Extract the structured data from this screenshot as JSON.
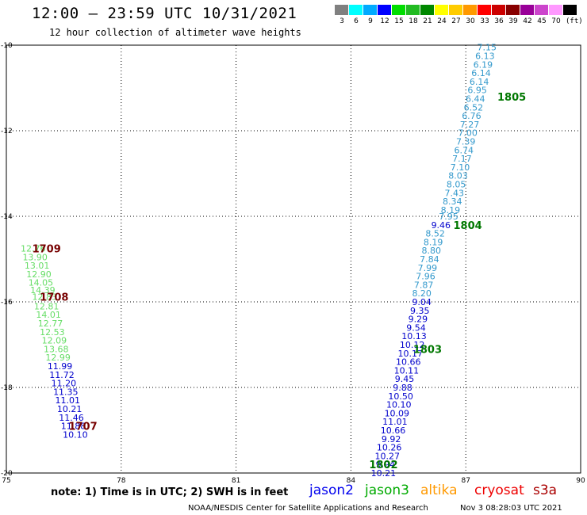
{
  "header": {
    "title": "12:00 — 23:59 UTC 10/31/2021",
    "subtitle": "12 hour collection of altimeter wave heights",
    "units": "(ft)"
  },
  "colorbar": [
    {
      "label": "3",
      "color": "#808080"
    },
    {
      "label": "6",
      "color": "#00ffff"
    },
    {
      "label": "9",
      "color": "#00aaff"
    },
    {
      "label": "12",
      "color": "#0000ff"
    },
    {
      "label": "15",
      "color": "#00dd00"
    },
    {
      "label": "18",
      "color": "#22bb22"
    },
    {
      "label": "21",
      "color": "#008800"
    },
    {
      "label": "24",
      "color": "#ffff00"
    },
    {
      "label": "27",
      "color": "#ffcc00"
    },
    {
      "label": "30",
      "color": "#ff9900"
    },
    {
      "label": "33",
      "color": "#ff0000"
    },
    {
      "label": "36",
      "color": "#cc0000"
    },
    {
      "label": "39",
      "color": "#880000"
    },
    {
      "label": "42",
      "color": "#990099"
    },
    {
      "label": "45",
      "color": "#cc44cc"
    },
    {
      "label": "70",
      "color": "#ff99ff"
    },
    {
      "label": "",
      "color": "#000000"
    }
  ],
  "footer": {
    "note": "note: 1) Time is in UTC; 2) SWH is in feet",
    "center": "NOAA/NESDIS Center for Satellite Applications and Research",
    "right": "Nov  3 08:28:03 UTC 2021"
  },
  "satellites": [
    {
      "name": "jason2",
      "color": "#0000ee"
    },
    {
      "name": "jason3",
      "color": "#00aa00"
    },
    {
      "name": "altika",
      "color": "#ff9900"
    },
    {
      "name": "cryosat",
      "color": "#ee0000"
    },
    {
      "name": "s3a",
      "color": "#aa0000"
    }
  ],
  "chart_data": {
    "type": "scatter",
    "xlim": [
      75,
      90
    ],
    "ylim": [
      -20,
      -10
    ],
    "xticks": [
      "75",
      "78",
      "81",
      "84",
      "87",
      "90"
    ],
    "yticks": [
      "-10",
      "-12",
      "-14",
      "-16",
      "-18",
      "-20"
    ],
    "grid": true,
    "series": [
      {
        "color": "#3399cc",
        "points": [
          {
            "x": 87.55,
            "y": -10.05,
            "label": "7.15"
          },
          {
            "x": 87.5,
            "y": -10.25,
            "label": "6.13"
          },
          {
            "x": 87.45,
            "y": -10.45,
            "label": "6.19"
          },
          {
            "x": 87.4,
            "y": -10.65,
            "label": "6.14"
          },
          {
            "x": 87.35,
            "y": -10.85,
            "label": "6.14"
          },
          {
            "x": 87.3,
            "y": -11.05,
            "label": "6.95"
          },
          {
            "x": 87.25,
            "y": -11.25,
            "label": "6.44"
          },
          {
            "x": 87.2,
            "y": -11.45,
            "label": "6.52"
          },
          {
            "x": 87.15,
            "y": -11.65,
            "label": "6.76"
          },
          {
            "x": 87.1,
            "y": -11.85,
            "label": "7.27"
          },
          {
            "x": 87.05,
            "y": -12.05,
            "label": "7.00"
          },
          {
            "x": 87,
            "y": -12.25,
            "label": "7.39"
          },
          {
            "x": 86.95,
            "y": -12.45,
            "label": "6.74"
          },
          {
            "x": 86.9,
            "y": -12.65,
            "label": "7.17"
          },
          {
            "x": 86.85,
            "y": -12.85,
            "label": "7.10"
          },
          {
            "x": 86.8,
            "y": -13.05,
            "label": "8.03"
          },
          {
            "x": 86.75,
            "y": -13.25,
            "label": "8.05"
          },
          {
            "x": 86.7,
            "y": -13.45,
            "label": "7.43"
          },
          {
            "x": 86.65,
            "y": -13.65,
            "label": "8.34"
          },
          {
            "x": 86.6,
            "y": -13.85,
            "label": "8.19"
          },
          {
            "x": 86.55,
            "y": -14.0,
            "label": "7.95"
          },
          {
            "x": 86.2,
            "y": -14.4,
            "label": "8.52"
          },
          {
            "x": 86.15,
            "y": -14.6,
            "label": "8.19"
          },
          {
            "x": 86.1,
            "y": -14.8,
            "label": "8.80"
          },
          {
            "x": 86.05,
            "y": -15.0,
            "label": "7.84"
          },
          {
            "x": 86,
            "y": -15.2,
            "label": "7.99"
          },
          {
            "x": 85.95,
            "y": -15.4,
            "label": "7.96"
          },
          {
            "x": 85.9,
            "y": -15.6,
            "label": "7.87"
          },
          {
            "x": 85.85,
            "y": -15.8,
            "label": "8.20"
          }
        ]
      },
      {
        "color": "#0000cc",
        "points": [
          {
            "x": 86.35,
            "y": -14.2,
            "label": "9.46"
          },
          {
            "x": 85.85,
            "y": -16.0,
            "label": "9.04"
          },
          {
            "x": 85.8,
            "y": -16.2,
            "label": "9.35"
          },
          {
            "x": 85.75,
            "y": -16.4,
            "label": "9.29"
          },
          {
            "x": 85.7,
            "y": -16.6,
            "label": "9.54"
          },
          {
            "x": 85.65,
            "y": -16.8,
            "label": "10.13"
          },
          {
            "x": 85.6,
            "y": -17.0,
            "label": "10.12"
          },
          {
            "x": 85.55,
            "y": -17.2,
            "label": "10.17"
          },
          {
            "x": 85.5,
            "y": -17.4,
            "label": "10.66"
          },
          {
            "x": 85.45,
            "y": -17.6,
            "label": "10.11"
          },
          {
            "x": 85.4,
            "y": -17.8,
            "label": "9.45"
          },
          {
            "x": 85.35,
            "y": -18.0,
            "label": "9.88"
          },
          {
            "x": 85.3,
            "y": -18.2,
            "label": "10.50"
          },
          {
            "x": 85.25,
            "y": -18.4,
            "label": "10.10"
          },
          {
            "x": 85.2,
            "y": -18.6,
            "label": "10.09"
          },
          {
            "x": 85.15,
            "y": -18.8,
            "label": "11.01"
          },
          {
            "x": 85.1,
            "y": -19.0,
            "label": "10.66"
          },
          {
            "x": 85.05,
            "y": -19.2,
            "label": "9.92"
          },
          {
            "x": 85,
            "y": -19.4,
            "label": "10.26"
          },
          {
            "x": 84.95,
            "y": -19.6,
            "label": "10.27"
          },
          {
            "x": 84.9,
            "y": -19.8,
            "label": "9.94"
          },
          {
            "x": 84.85,
            "y": -20.0,
            "label": "10.21"
          }
        ]
      },
      {
        "color": "#66dd66",
        "points": [
          {
            "x": 75.7,
            "y": -14.75,
            "label": "12.76"
          },
          {
            "x": 75.75,
            "y": -14.95,
            "label": "13.90"
          },
          {
            "x": 75.8,
            "y": -15.15,
            "label": "13.01"
          },
          {
            "x": 75.85,
            "y": -15.35,
            "label": "12.90"
          },
          {
            "x": 75.9,
            "y": -15.55,
            "label": "14.05"
          },
          {
            "x": 75.95,
            "y": -15.72,
            "label": "14.39"
          },
          {
            "x": 76.0,
            "y": -15.88,
            "label": "12.83"
          },
          {
            "x": 76.05,
            "y": -16.1,
            "label": "12.81"
          },
          {
            "x": 76.1,
            "y": -16.3,
            "label": "14.01"
          },
          {
            "x": 76.15,
            "y": -16.5,
            "label": "12.77"
          },
          {
            "x": 76.2,
            "y": -16.7,
            "label": "12.53"
          },
          {
            "x": 76.25,
            "y": -16.9,
            "label": "12.09"
          },
          {
            "x": 76.3,
            "y": -17.1,
            "label": "13.68"
          },
          {
            "x": 76.35,
            "y": -17.3,
            "label": "12.99"
          }
        ]
      },
      {
        "color": "#0000cc",
        "points": [
          {
            "x": 76.4,
            "y": -17.5,
            "label": "11.99"
          },
          {
            "x": 76.45,
            "y": -17.7,
            "label": "11.72"
          },
          {
            "x": 76.5,
            "y": -17.9,
            "label": "11.20"
          },
          {
            "x": 76.55,
            "y": -18.1,
            "label": "11.35"
          },
          {
            "x": 76.6,
            "y": -18.3,
            "label": "11.01"
          },
          {
            "x": 76.65,
            "y": -18.5,
            "label": "10.21"
          },
          {
            "x": 76.7,
            "y": -18.7,
            "label": "11.46"
          },
          {
            "x": 76.75,
            "y": -18.9,
            "label": "11.88"
          },
          {
            "x": 76.8,
            "y": -19.1,
            "label": "10.10"
          }
        ]
      }
    ],
    "time_labels": [
      {
        "x": 88.2,
        "y": -11.2,
        "label": "1805",
        "color": "#007700"
      },
      {
        "x": 87.05,
        "y": -14.2,
        "label": "1804",
        "color": "#007700"
      },
      {
        "x": 86.0,
        "y": -17.1,
        "label": "1803",
        "color": "#007700"
      },
      {
        "x": 84.85,
        "y": -19.8,
        "label": "1802",
        "color": "#007700"
      },
      {
        "x": 76.05,
        "y": -14.75,
        "label": "1709",
        "color": "#770000"
      },
      {
        "x": 76.25,
        "y": -15.88,
        "label": "1708",
        "color": "#770000"
      },
      {
        "x": 77.0,
        "y": -18.9,
        "label": "1707",
        "color": "#770000"
      }
    ]
  }
}
